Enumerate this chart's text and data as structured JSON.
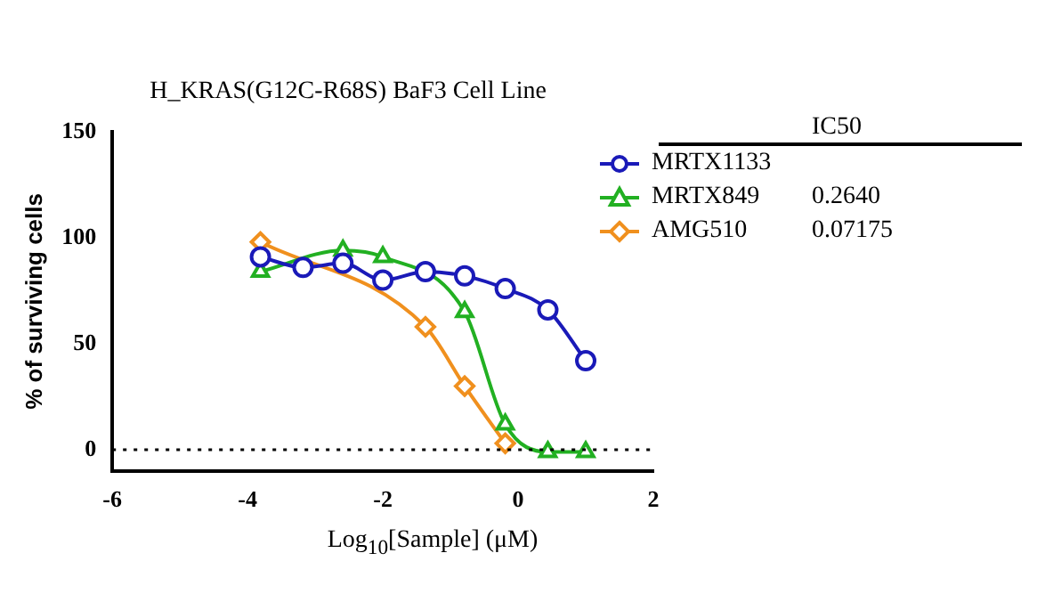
{
  "chart_data": {
    "type": "line",
    "title": "H_KRAS(G12C-R68S) BaF3 Cell Line",
    "xlabel": "Log$_{10}$[Sample] (μM)",
    "ylabel": "% of surviving cells",
    "legend_title": "IC50",
    "x": [
      -3.81,
      -3.18,
      -2.59,
      -2.0,
      -1.37,
      -0.79,
      -0.19,
      0.44,
      1.0
    ],
    "series": [
      {
        "name": "MRTX1133",
        "color": "#1a1ab8",
        "marker": "circle",
        "values": [
          91,
          86,
          88,
          80,
          84,
          82,
          76,
          66,
          42
        ]
      },
      {
        "name": "MRTX849",
        "color": "#22b022",
        "marker": "triangle",
        "values": [
          84,
          null,
          94,
          91,
          null,
          65,
          12,
          -1,
          -1
        ]
      },
      {
        "name": "AMG510",
        "color": "#f0901e",
        "marker": "diamond",
        "values": [
          98,
          null,
          null,
          null,
          58,
          30,
          3,
          null,
          null
        ]
      }
    ],
    "annotations": [
      "0.2640",
      "0.07175"
    ],
    "xlim": [
      -6,
      2
    ],
    "xticks": [
      -6,
      -4,
      -2,
      0,
      2
    ],
    "ylim": [
      -10,
      150
    ],
    "yticks": [
      0,
      50,
      100,
      150
    ],
    "ref_lines": [
      {
        "axis": "y",
        "value": 0,
        "line_style": "dotted",
        "color": "#000000"
      }
    ],
    "grid": false,
    "legend": "right"
  }
}
